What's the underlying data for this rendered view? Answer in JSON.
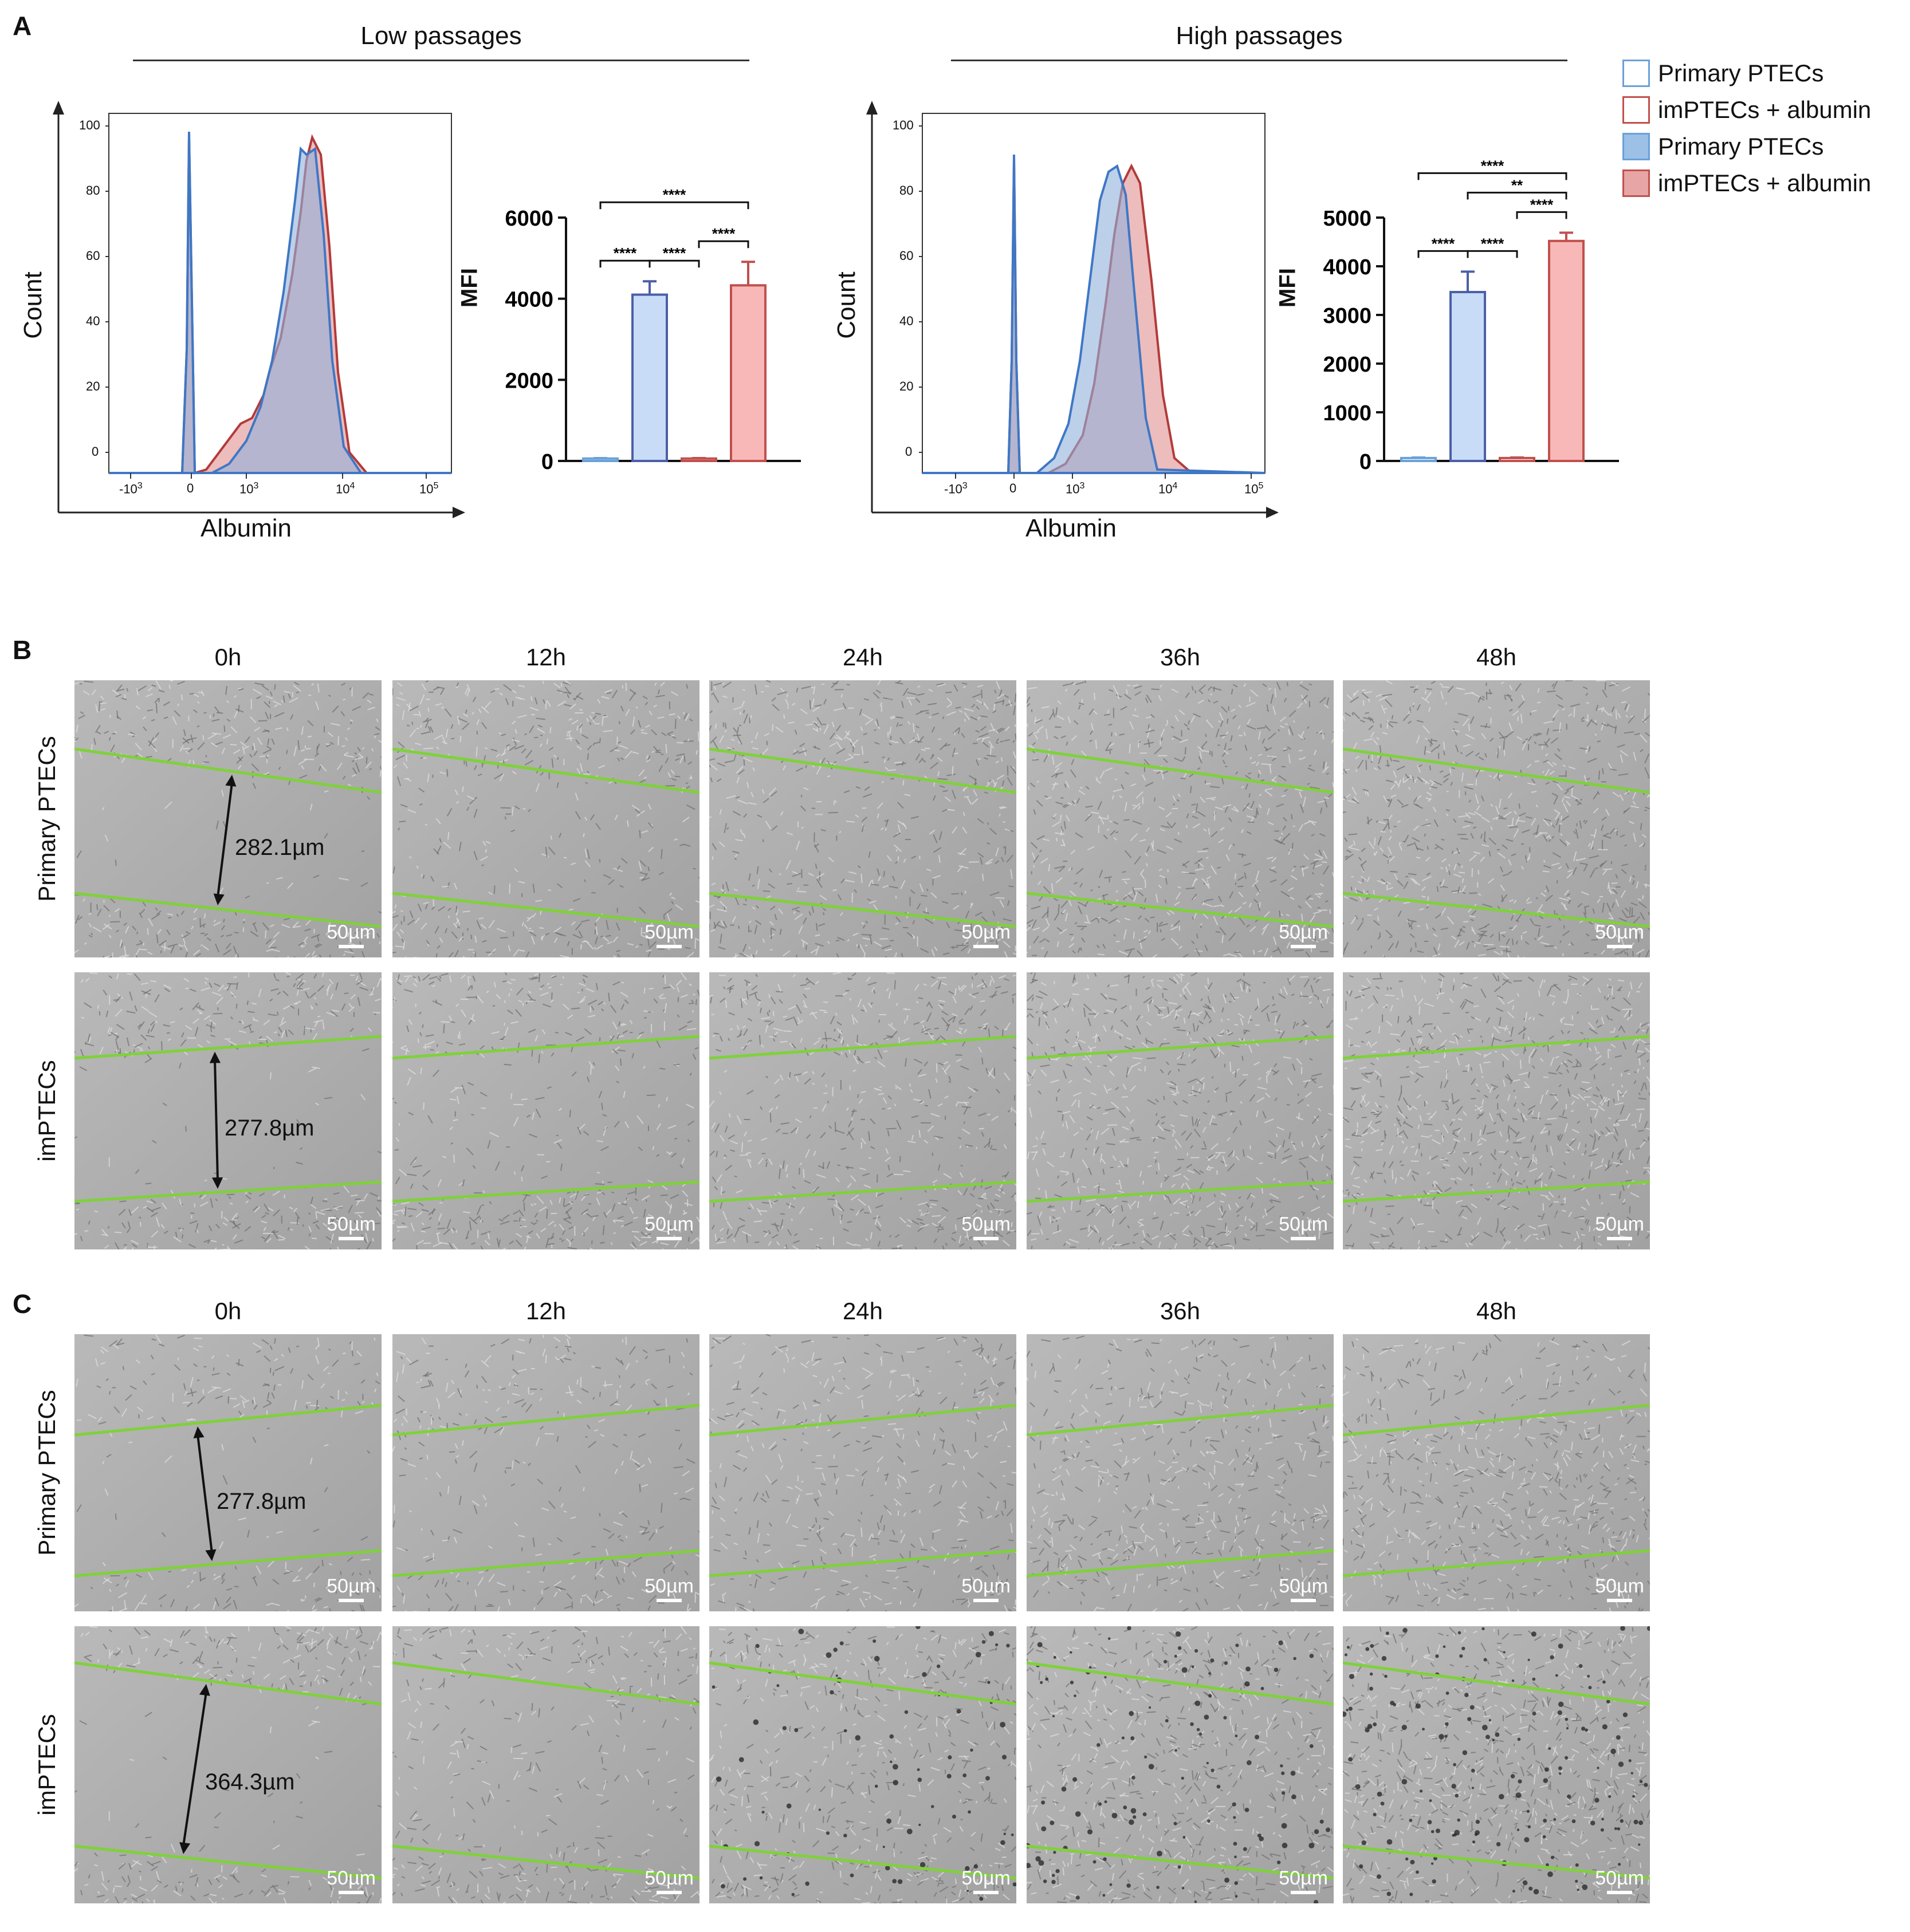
{
  "panelA": {
    "letter": "A",
    "low_title": "Low passages",
    "high_title": "High passages",
    "hist_ylabel": "Count",
    "hist_xlabel": "Albumin",
    "bar_ylabel": "MFI",
    "hist_yticks": [
      "0",
      "20",
      "40",
      "60",
      "80",
      "100"
    ],
    "hist_xticks": [
      "-10",
      "0",
      "10",
      "10",
      "10"
    ],
    "hist_xtick_exp": [
      "3",
      "",
      "3",
      "4",
      "5"
    ]
  },
  "legend": [
    {
      "label": "Primary PTECs",
      "color": "#6aa1d8",
      "fill": "#ffffff"
    },
    {
      "label": "imPTECs + albumin",
      "color": "#c0504d",
      "fill": "#ffffff"
    },
    {
      "label": "Primary PTECs",
      "color": "#6aa1d8",
      "fill": "#9cc0e6"
    },
    {
      "label": "imPTECs + albumin",
      "color": "#c0504d",
      "fill": "#e7a5a5"
    }
  ],
  "chart_data": [
    {
      "type": "bar",
      "ylabel": "MFI",
      "ylim": [
        0,
        6000
      ],
      "yticks": [
        "0",
        "2000",
        "4000",
        "6000"
      ],
      "values": [
        60,
        4100,
        60,
        4330
      ],
      "errors": [
        10,
        330,
        10,
        580
      ],
      "fills": [
        "#ffffff",
        "#c9dcf7",
        "#ffffff",
        "#f8b8b8"
      ],
      "strokes": [
        "#6aa1d8",
        "#4b5fa8",
        "#c0504d",
        "#c0504d"
      ],
      "significance": [
        {
          "from": 0,
          "to": 1,
          "label": "****"
        },
        {
          "from": 1,
          "to": 2,
          "label": "****"
        },
        {
          "from": 2,
          "to": 3,
          "label": "****"
        },
        {
          "from": 0,
          "to": 3,
          "label": "****"
        }
      ]
    },
    {
      "type": "bar",
      "ylabel": "MFI",
      "ylim": [
        0,
        5000
      ],
      "yticks": [
        "0",
        "1000",
        "2000",
        "3000",
        "4000",
        "5000"
      ],
      "values": [
        60,
        3470,
        60,
        4520
      ],
      "errors": [
        10,
        420,
        10,
        170
      ],
      "fills": [
        "#ffffff",
        "#c9dcf7",
        "#ffffff",
        "#f8b8b8"
      ],
      "strokes": [
        "#6aa1d8",
        "#4b5fa8",
        "#c0504d",
        "#c0504d"
      ],
      "significance": [
        {
          "from": 0,
          "to": 1,
          "label": "****"
        },
        {
          "from": 1,
          "to": 2,
          "label": "****"
        },
        {
          "from": 2,
          "to": 3,
          "label": "****"
        },
        {
          "from": 0,
          "to": 3,
          "label": "****"
        },
        {
          "from": 1,
          "to": 3,
          "label": "**"
        }
      ]
    }
  ],
  "panelB": {
    "letter": "B",
    "times": [
      "0h",
      "12h",
      "24h",
      "36h",
      "48h"
    ],
    "rows": [
      "Primary PTECs",
      "imPTECs"
    ],
    "measurements": [
      "282.1µm",
      "277.8µm"
    ],
    "scale": "50µm"
  },
  "panelC": {
    "letter": "C",
    "times": [
      "0h",
      "12h",
      "24h",
      "36h",
      "48h"
    ],
    "rows": [
      "Primary PTECs",
      "imPTECs"
    ],
    "measurements": [
      "277.8µm",
      "364.3µm"
    ],
    "scale": "50µm"
  }
}
